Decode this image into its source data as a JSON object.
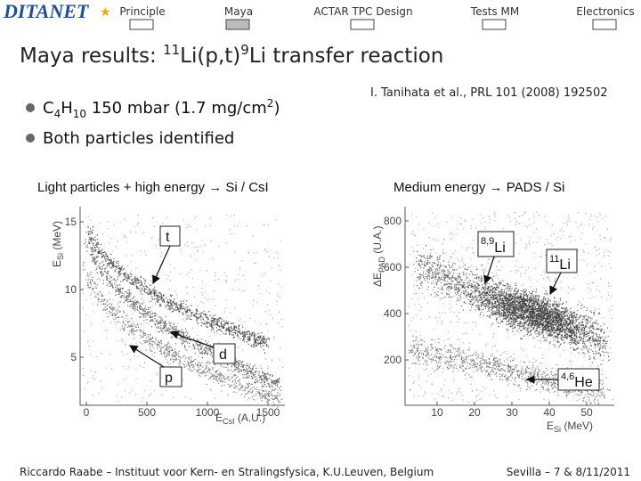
{
  "nav": {
    "logo": "DITANET",
    "items": [
      "Principle",
      "Maya",
      "ACTAR TPC Design",
      "Tests MM",
      "Electronics"
    ]
  },
  "title": {
    "pre": "Maya results: ",
    "sup1": "11",
    "mid": "Li(p,t)",
    "sup2": "9",
    "post": "Li transfer reaction"
  },
  "bullet1": {
    "a": "C",
    "s1": "4",
    "b": "H",
    "s2": "10",
    "c": " 150 mbar (1.7 mg/cm",
    "s3": "2",
    "d": ")"
  },
  "bullet2": "Both particles identified",
  "reference": "I. Tanihata et al., PRL 101 (2008) 192502",
  "plots": [
    {
      "title": "Light particles + high energy  → Si / CsI",
      "ylabel": {
        "main": "E",
        "sub": "Si",
        "unit": " (MeV)"
      },
      "yticks": [
        15,
        10,
        5
      ],
      "xlabel": {
        "main": "E",
        "sub": "CsI",
        "unit": " (A.U.)"
      },
      "xticks": [
        0,
        500,
        1000,
        1500
      ],
      "labels": [
        "t",
        "d",
        "p"
      ]
    },
    {
      "title": "Medium energy → PADS / Si",
      "ylabel": {
        "main": "ΔE",
        "sub": "PAD",
        "unit": " (U.A.)"
      },
      "yticks": [
        800,
        600,
        400,
        200
      ],
      "xlabel": {
        "main": "E",
        "sub": "Si",
        "unit": " (MeV)"
      },
      "xticks": [
        10,
        20,
        30,
        40,
        50
      ],
      "labels": [
        {
          "sup": "8,9",
          "main": "Li"
        },
        {
          "sup": "11",
          "main": "Li"
        },
        {
          "sup": "4,6",
          "main": "He"
        }
      ]
    }
  ],
  "footer": {
    "left": "Riccardo Raabe – Instituut voor Kern- en Stralingsfysica, K.U.Leuven, Belgium",
    "right": "Sevilla – 7 & 8/11/2011"
  }
}
